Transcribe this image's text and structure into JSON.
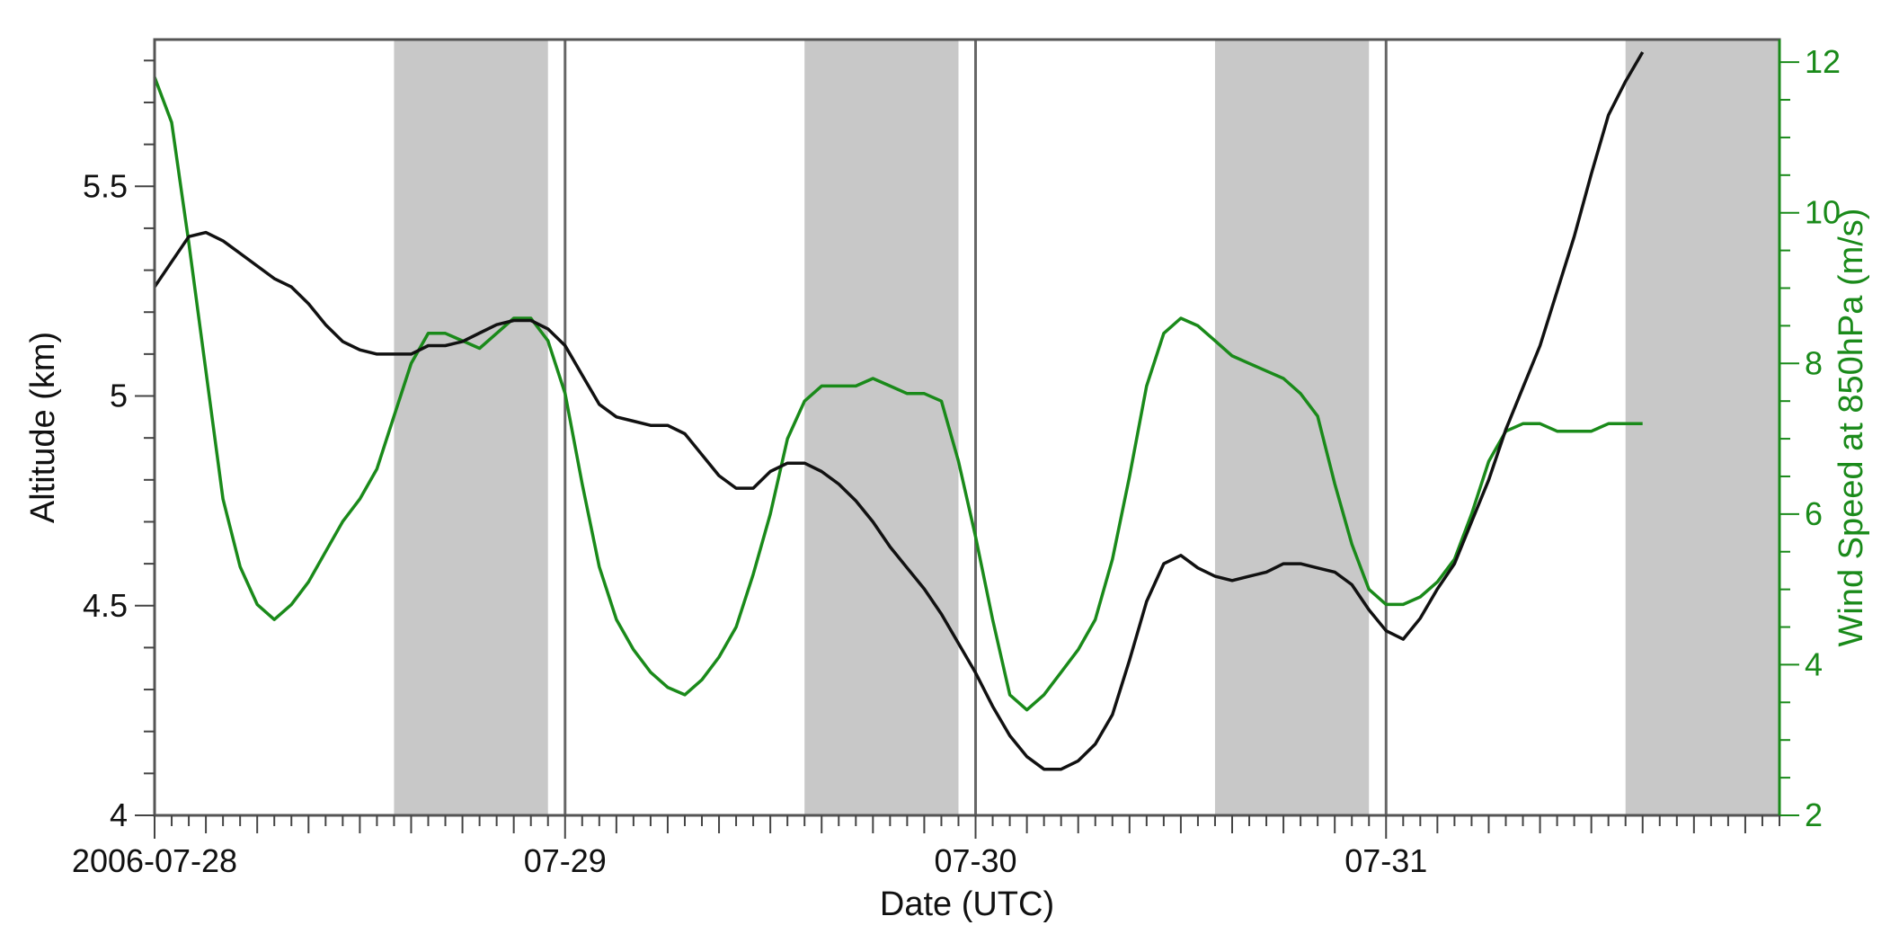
{
  "chart_data": {
    "type": "line",
    "xlabel": "Date (UTC)",
    "ylabel": "Altitude (km)",
    "y2label": "Wind Speed at 850hPa (m/s)",
    "xrange_hours": [
      0,
      95
    ],
    "ylim": [
      4,
      5.85
    ],
    "y2lim": [
      2,
      12.3
    ],
    "x_tick_labels": [
      {
        "hour": 0,
        "label": "2006-07-28"
      },
      {
        "hour": 24,
        "label": "07-29"
      },
      {
        "hour": 48,
        "label": "07-30"
      },
      {
        "hour": 72,
        "label": "07-31"
      }
    ],
    "y_ticks": [
      "4",
      "4.5",
      "5",
      "5.5"
    ],
    "y2_ticks": [
      "2",
      "4",
      "6",
      "8",
      "10",
      "12"
    ],
    "grid": false,
    "day_lines_hours": [
      24,
      48,
      72
    ],
    "shaded_bands_hours": [
      [
        14,
        23
      ],
      [
        38,
        47
      ],
      [
        62,
        71
      ],
      [
        86,
        95
      ]
    ],
    "colors": {
      "altitude": "#111111",
      "wind": "#1a8a1a",
      "band": "#c8c8c8",
      "day_line": "#666666"
    },
    "series": [
      {
        "axis": "left",
        "points": [
          [
            0,
            5.26
          ],
          [
            1,
            5.32
          ],
          [
            2,
            5.38
          ],
          [
            3,
            5.39
          ],
          [
            4,
            5.37
          ],
          [
            5,
            5.34
          ],
          [
            6,
            5.31
          ],
          [
            7,
            5.28
          ],
          [
            8,
            5.26
          ],
          [
            9,
            5.22
          ],
          [
            10,
            5.17
          ],
          [
            11,
            5.13
          ],
          [
            12,
            5.11
          ],
          [
            13,
            5.1
          ],
          [
            14,
            5.1
          ],
          [
            15,
            5.1
          ],
          [
            16,
            5.12
          ],
          [
            17,
            5.12
          ],
          [
            18,
            5.13
          ],
          [
            19,
            5.15
          ],
          [
            20,
            5.17
          ],
          [
            21,
            5.18
          ],
          [
            22,
            5.18
          ],
          [
            23,
            5.16
          ],
          [
            24,
            5.12
          ],
          [
            25,
            5.05
          ],
          [
            26,
            4.98
          ],
          [
            27,
            4.95
          ],
          [
            28,
            4.94
          ],
          [
            29,
            4.93
          ],
          [
            30,
            4.93
          ],
          [
            31,
            4.91
          ],
          [
            32,
            4.86
          ],
          [
            33,
            4.81
          ],
          [
            34,
            4.78
          ],
          [
            35,
            4.78
          ],
          [
            36,
            4.82
          ],
          [
            37,
            4.84
          ],
          [
            38,
            4.84
          ],
          [
            39,
            4.82
          ],
          [
            40,
            4.79
          ],
          [
            41,
            4.75
          ],
          [
            42,
            4.7
          ],
          [
            43,
            4.64
          ],
          [
            44,
            4.59
          ],
          [
            45,
            4.54
          ],
          [
            46,
            4.48
          ],
          [
            47,
            4.41
          ],
          [
            48,
            4.34
          ],
          [
            49,
            4.26
          ],
          [
            50,
            4.19
          ],
          [
            51,
            4.14
          ],
          [
            52,
            4.11
          ],
          [
            53,
            4.11
          ],
          [
            54,
            4.13
          ],
          [
            55,
            4.17
          ],
          [
            56,
            4.24
          ],
          [
            57,
            4.37
          ],
          [
            58,
            4.51
          ],
          [
            59,
            4.6
          ],
          [
            60,
            4.62
          ],
          [
            61,
            4.59
          ],
          [
            62,
            4.57
          ],
          [
            63,
            4.56
          ],
          [
            64,
            4.57
          ],
          [
            65,
            4.58
          ],
          [
            66,
            4.6
          ],
          [
            67,
            4.6
          ],
          [
            68,
            4.59
          ],
          [
            69,
            4.58
          ],
          [
            70,
            4.55
          ],
          [
            71,
            4.49
          ],
          [
            72,
            4.44
          ],
          [
            73,
            4.42
          ],
          [
            74,
            4.47
          ],
          [
            75,
            4.54
          ],
          [
            76,
            4.6
          ],
          [
            77,
            4.7
          ],
          [
            78,
            4.8
          ],
          [
            79,
            4.92
          ],
          [
            80,
            5.02
          ],
          [
            81,
            5.12
          ],
          [
            82,
            5.25
          ],
          [
            83,
            5.38
          ],
          [
            84,
            5.53
          ],
          [
            85,
            5.67
          ],
          [
            86,
            5.75
          ],
          [
            87,
            5.82
          ]
        ]
      },
      {
        "axis": "right",
        "points": [
          [
            0,
            11.8
          ],
          [
            1,
            11.2
          ],
          [
            2,
            9.6
          ],
          [
            3,
            7.9
          ],
          [
            4,
            6.2
          ],
          [
            5,
            5.3
          ],
          [
            6,
            4.8
          ],
          [
            7,
            4.6
          ],
          [
            8,
            4.8
          ],
          [
            9,
            5.1
          ],
          [
            10,
            5.5
          ],
          [
            11,
            5.9
          ],
          [
            12,
            6.2
          ],
          [
            13,
            6.6
          ],
          [
            14,
            7.3
          ],
          [
            15,
            8.0
          ],
          [
            16,
            8.4
          ],
          [
            17,
            8.4
          ],
          [
            18,
            8.3
          ],
          [
            19,
            8.2
          ],
          [
            20,
            8.4
          ],
          [
            21,
            8.6
          ],
          [
            22,
            8.6
          ],
          [
            23,
            8.3
          ],
          [
            24,
            7.6
          ],
          [
            25,
            6.4
          ],
          [
            26,
            5.3
          ],
          [
            27,
            4.6
          ],
          [
            28,
            4.2
          ],
          [
            29,
            3.9
          ],
          [
            30,
            3.7
          ],
          [
            31,
            3.6
          ],
          [
            32,
            3.8
          ],
          [
            33,
            4.1
          ],
          [
            34,
            4.5
          ],
          [
            35,
            5.2
          ],
          [
            36,
            6.0
          ],
          [
            37,
            7.0
          ],
          [
            38,
            7.5
          ],
          [
            39,
            7.7
          ],
          [
            40,
            7.7
          ],
          [
            41,
            7.7
          ],
          [
            42,
            7.8
          ],
          [
            43,
            7.7
          ],
          [
            44,
            7.6
          ],
          [
            45,
            7.6
          ],
          [
            46,
            7.5
          ],
          [
            47,
            6.7
          ],
          [
            48,
            5.7
          ],
          [
            49,
            4.6
          ],
          [
            50,
            3.6
          ],
          [
            51,
            3.4
          ],
          [
            52,
            3.6
          ],
          [
            53,
            3.9
          ],
          [
            54,
            4.2
          ],
          [
            55,
            4.6
          ],
          [
            56,
            5.4
          ],
          [
            57,
            6.5
          ],
          [
            58,
            7.7
          ],
          [
            59,
            8.4
          ],
          [
            60,
            8.6
          ],
          [
            61,
            8.5
          ],
          [
            62,
            8.3
          ],
          [
            63,
            8.1
          ],
          [
            64,
            8.0
          ],
          [
            65,
            7.9
          ],
          [
            66,
            7.8
          ],
          [
            67,
            7.6
          ],
          [
            68,
            7.3
          ],
          [
            69,
            6.4
          ],
          [
            70,
            5.6
          ],
          [
            71,
            5.0
          ],
          [
            72,
            4.8
          ],
          [
            73,
            4.8
          ],
          [
            74,
            4.9
          ],
          [
            75,
            5.1
          ],
          [
            76,
            5.4
          ],
          [
            77,
            6.0
          ],
          [
            78,
            6.7
          ],
          [
            79,
            7.1
          ],
          [
            80,
            7.2
          ],
          [
            81,
            7.2
          ],
          [
            82,
            7.1
          ],
          [
            83,
            7.1
          ],
          [
            84,
            7.1
          ],
          [
            85,
            7.2
          ],
          [
            86,
            7.2
          ],
          [
            87,
            7.2
          ]
        ]
      }
    ]
  }
}
